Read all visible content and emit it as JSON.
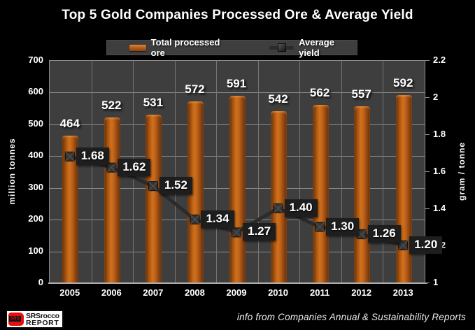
{
  "title": "Top 5 Gold Companies Processed Ore & Average Yield",
  "chart_data": {
    "type": "bar+line",
    "categories": [
      "2005",
      "2006",
      "2007",
      "2008",
      "2009",
      "2010",
      "2011",
      "2012",
      "2013"
    ],
    "series": [
      {
        "name": "Total processed ore",
        "type": "bar",
        "axis": "left",
        "values": [
          464,
          522,
          531,
          572,
          591,
          542,
          562,
          557,
          592
        ],
        "labels": [
          "464",
          "522",
          "531",
          "572",
          "591",
          "542",
          "562",
          "557",
          "592"
        ],
        "color": "#c2651a"
      },
      {
        "name": "Average yield",
        "type": "line",
        "axis": "right",
        "values": [
          1.68,
          1.62,
          1.52,
          1.34,
          1.27,
          1.4,
          1.3,
          1.26,
          1.2
        ],
        "labels": [
          "1.68",
          "1.62",
          "1.52",
          "1.34",
          "1.27",
          "1.40",
          "1.30",
          "1.26",
          "1.20"
        ],
        "color": "#2b2b2b"
      }
    ],
    "left_axis": {
      "label": "million tonnes",
      "min": 0,
      "max": 700,
      "tick_step": 100,
      "ticks": [
        "0",
        "100",
        "200",
        "300",
        "400",
        "500",
        "600",
        "700"
      ]
    },
    "right_axis": {
      "label": "gram  / tonne",
      "min": 1,
      "max": 2.2,
      "ticks": [
        "1",
        "1.2",
        "1.4",
        "1.6",
        "1.8",
        "2",
        "2.2"
      ]
    },
    "grid": true,
    "legend_position": "top"
  },
  "footer": {
    "source_note": "info from Companies Annual & Sustainability Reports",
    "logo": {
      "line1": "SRSrocco",
      "line2": "REPORT",
      "icon_text": "SRS"
    }
  },
  "colors": {
    "background": "#000000",
    "plot_background": "#3e3e3e",
    "gridline": "#8d8d8d",
    "bar_orange": "#c2651a",
    "line_dark": "#2b2b2b",
    "point_label_box": "#1e1e1e",
    "text": "#ffffff",
    "logo_red": "#e31111"
  }
}
